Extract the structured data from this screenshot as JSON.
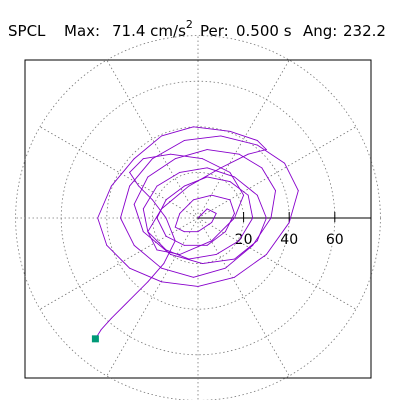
{
  "header": {
    "station": "SPCL",
    "max_label": "Max:",
    "max_value": "71.4 cm/s",
    "max_exponent": "2",
    "period_label": "Per:",
    "period_value": "0.500 s",
    "angle_label": "Ang:",
    "angle_value": "232.2"
  },
  "chart_data": {
    "type": "scatter",
    "subtype": "polar-particle-motion",
    "title": "SPCL   Max:  71.4 cm/s2  Per:  0.500 s   Ang: 232.2",
    "radial_ticks": [
      20,
      40,
      60
    ],
    "radial_tick_labels": [
      "20",
      "40",
      "60"
    ],
    "radial_max": 80,
    "angular_grid_step_deg": 30,
    "grid": true,
    "trace_color": "#8800cc",
    "marker_color": "#009977",
    "trace": {
      "x": [
        -45.0,
        -42.5,
        -38.0,
        -30.0,
        -22.0,
        -15.0,
        -10.0,
        -14.0,
        -20.0,
        -26.0,
        -30.0,
        -24.0,
        -12.0,
        2.0,
        14.0,
        20.0,
        16.0,
        6.0,
        -8.0,
        -18.0,
        -22.0,
        -16.0,
        -4.0,
        10.0,
        22.0,
        30.0,
        26.0,
        14.0,
        -2.0,
        -16.0,
        -28.0,
        -38.0,
        -44.0,
        -40.0,
        -30.0,
        -16.0,
        0.0,
        16.0,
        30.0,
        40.0,
        44.0,
        38.0,
        26.0,
        10.0,
        -6.0,
        -20.0,
        -30.0,
        -34.0,
        -28.0,
        -16.0,
        -2.0,
        12.0,
        24.0,
        32.0,
        34.0,
        28.0,
        18.0,
        4.0,
        -10.0,
        -22.0,
        -28.0,
        -24.0,
        -12.0,
        2.0,
        16.0,
        26.0,
        30.0,
        26.0,
        16.0,
        4.0,
        -8.0,
        -18.0,
        -24.0,
        -22.0,
        -14.0,
        -4.0,
        8.0,
        18.0,
        24.0,
        22.0,
        14.0,
        4.0,
        -6.0,
        -14.0,
        -18.0,
        -14.0,
        -6.0,
        4.0,
        12.0,
        16.0,
        14.0,
        6.0,
        -2.0,
        -8.0,
        -10.0,
        -6.0,
        0.0,
        6.0,
        8.0,
        4.0,
        0.0
      ],
      "y": [
        -53.0,
        -49.0,
        -44.0,
        -36.0,
        -28.0,
        -20.0,
        -10.0,
        0.0,
        8.0,
        14.0,
        20.0,
        26.0,
        28.0,
        26.0,
        20.0,
        10.0,
        0.0,
        -10.0,
        -16.0,
        -14.0,
        -6.0,
        4.0,
        14.0,
        22.0,
        28.0,
        30.0,
        34.0,
        38.0,
        40.0,
        36.0,
        26.0,
        14.0,
        0.0,
        -12.0,
        -22.0,
        -28.0,
        -30.0,
        -26.0,
        -16.0,
        -2.0,
        12.0,
        24.0,
        32.0,
        36.0,
        34.0,
        26.0,
        14.0,
        0.0,
        -12.0,
        -22.0,
        -26.0,
        -22.0,
        -12.0,
        0.0,
        12.0,
        22.0,
        28.0,
        30.0,
        26.0,
        18.0,
        6.0,
        -6.0,
        -16.0,
        -20.0,
        -18.0,
        -10.0,
        0.0,
        10.0,
        18.0,
        22.0,
        20.0,
        14.0,
        4.0,
        -6.0,
        -14.0,
        -18.0,
        -16.0,
        -10.0,
        0.0,
        10.0,
        16.0,
        18.0,
        14.0,
        8.0,
        0.0,
        -8.0,
        -12.0,
        -12.0,
        -6.0,
        2.0,
        8.0,
        10.0,
        8.0,
        2.0,
        -4.0,
        -6.0,
        -6.0,
        -2.0,
        2.0,
        4.0,
        0.0
      ]
    },
    "start_marker": {
      "x": -45.0,
      "y": -53.0
    }
  }
}
